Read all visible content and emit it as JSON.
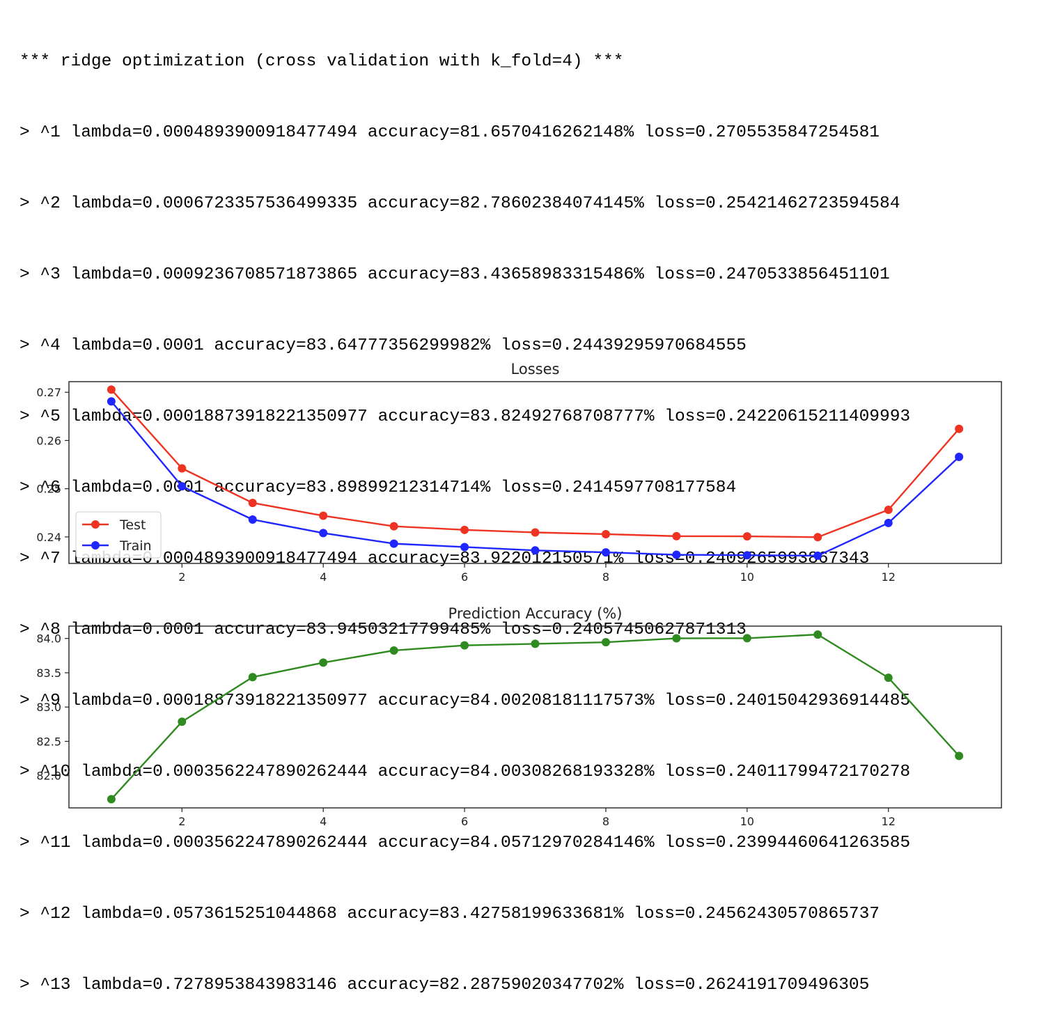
{
  "log": {
    "header": "*** ridge optimization (cross validation with k_fold=4) ***",
    "lines": [
      "> ^1 lambda=0.0004893900918477494 accuracy=81.6570416262148% loss=0.2705535847254581",
      "> ^2 lambda=0.0006723357536499335 accuracy=82.78602384074145% loss=0.25421462723594584",
      "> ^3 lambda=0.0009236708571873865 accuracy=83.43658983315486% loss=0.2470533856451101",
      "> ^4 lambda=0.0001 accuracy=83.64777356299982% loss=0.24439295970684555",
      "> ^5 lambda=0.00018873918221350977 accuracy=83.82492768708777% loss=0.24220615211409993",
      "> ^6 lambda=0.0001 accuracy=83.89899212314714% loss=0.2414597708177584",
      "> ^7 lambda=0.0004893900918477494 accuracy=83.922012150571% loss=0.2409265993867343",
      "> ^8 lambda=0.0001 accuracy=83.94503217799485% loss=0.24057450627871313",
      "> ^9 lambda=0.00018873918221350977 accuracy=84.00208181117573% loss=0.24015042936914485",
      "> ^10 lambda=0.0003562247890262444 accuracy=84.00308268193328% loss=0.24011799472170278",
      "> ^11 lambda=0.0003562247890262444 accuracy=84.05712970284146% loss=0.23994460641263585",
      "> ^12 lambda=0.0573615251044868 accuracy=83.42758199633681% loss=0.24562430570865737",
      "> ^13 lambda=0.7278953843983146 accuracy=82.28759020347702% loss=0.2624191709496305"
    ]
  },
  "chart_data": [
    {
      "type": "line",
      "title": "Losses",
      "xlabel": "",
      "ylabel": "",
      "x": [
        1,
        2,
        3,
        4,
        5,
        6,
        7,
        8,
        9,
        10,
        11,
        12,
        13
      ],
      "xticks": [
        2,
        4,
        6,
        8,
        10,
        12
      ],
      "xlim": [
        0.4,
        13.6
      ],
      "yticks": [
        0.24,
        0.25,
        0.26,
        0.27
      ],
      "ytick_labels": [
        "0.24",
        "0.25",
        "0.26",
        "0.27"
      ],
      "ylim": [
        0.2345,
        0.2722
      ],
      "grid": false,
      "legend_position": "lower-left",
      "series": [
        {
          "name": "Test",
          "color": "#ee3322",
          "values": [
            0.2705535847254581,
            0.25421462723594584,
            0.2470533856451101,
            0.24439295970684555,
            0.24220615211409993,
            0.2414597708177584,
            0.2409265993867343,
            0.24057450627871313,
            0.24015042936914485,
            0.24011799472170278,
            0.23994460641263585,
            0.24562430570865737,
            0.2624191709496305
          ]
        },
        {
          "name": "Train",
          "color": "#1f26ff",
          "values": [
            0.2681,
            0.2505,
            0.2436,
            0.2408,
            0.2386,
            0.2379,
            0.2372,
            0.2368,
            0.2363,
            0.2362,
            0.2361,
            0.2429,
            0.2566
          ]
        }
      ]
    },
    {
      "type": "line",
      "title": "Prediction Accuracy (%)",
      "xlabel": "",
      "ylabel": "",
      "x": [
        1,
        2,
        3,
        4,
        5,
        6,
        7,
        8,
        9,
        10,
        11,
        12,
        13
      ],
      "xticks": [
        2,
        4,
        6,
        8,
        10,
        12
      ],
      "xlim": [
        0.4,
        13.6
      ],
      "yticks": [
        82.0,
        82.5,
        83.0,
        83.5,
        84.0
      ],
      "ytick_labels": [
        "82.0",
        "82.5",
        "83.0",
        "83.5",
        "84.0"
      ],
      "ylim": [
        81.53,
        84.18
      ],
      "grid": false,
      "series": [
        {
          "name": "",
          "color": "#2f8a1f",
          "values": [
            81.6570416262148,
            82.78602384074145,
            83.43658983315486,
            83.64777356299982,
            83.82492768708777,
            83.89899212314714,
            83.922012150571,
            83.94503217799485,
            84.00208181117573,
            84.00308268193328,
            84.05712970284146,
            83.42758199633681,
            82.28759020347702
          ]
        }
      ]
    }
  ]
}
